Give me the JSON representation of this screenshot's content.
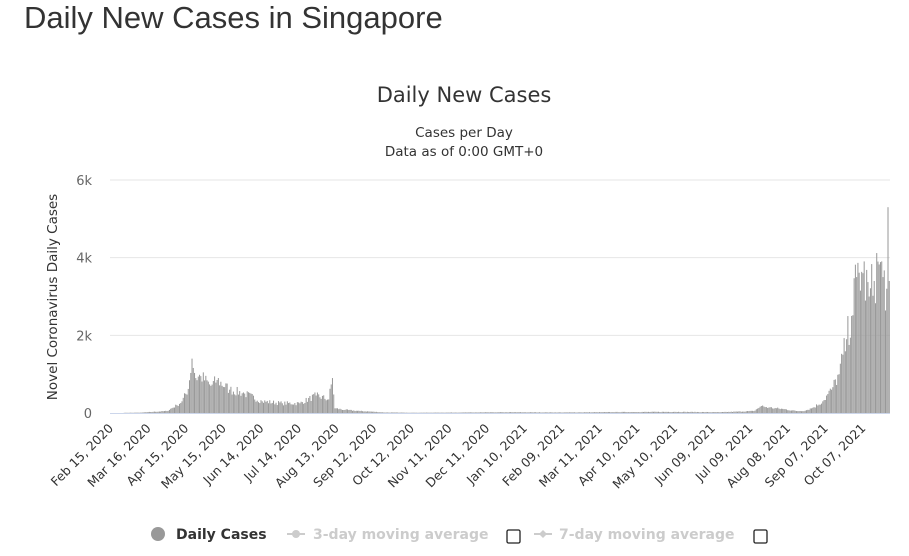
{
  "page": {
    "title": "Daily New Cases in Singapore"
  },
  "colors": {
    "bar": "#999999",
    "legend_inactive": "#cccccc",
    "grid": "#e6e6e6",
    "axis": "#ccd6eb",
    "text": "#333333"
  },
  "chart_data": {
    "type": "bar",
    "title": "Daily New Cases",
    "subtitle": "Cases per Day",
    "subtitle2": "Data as of 0:00 GMT+0",
    "ylabel": "Novel Coronavirus Daily Cases",
    "xlabel": "",
    "ylim": [
      0,
      6000
    ],
    "yticks": [
      0,
      2000,
      4000,
      6000
    ],
    "ytick_labels": [
      "0",
      "2k",
      "4k",
      "6k"
    ],
    "x_start": "2020-02-15",
    "x_end": "2021-10-28",
    "xtick_labels": [
      "Feb 15, 2020",
      "Mar 16, 2020",
      "Apr 15, 2020",
      "May 15, 2020",
      "Jun 14, 2020",
      "Jul 14, 2020",
      "Aug 13, 2020",
      "Sep 12, 2020",
      "Oct 12, 2020",
      "Nov 11, 2020",
      "Dec 11, 2020",
      "Jan 10, 2021",
      "Feb 09, 2021",
      "Mar 11, 2021",
      "Apr 10, 2021",
      "May 10, 2021",
      "Jun 09, 2021",
      "Jul 09, 2021",
      "Aug 08, 2021",
      "Sep 07, 2021",
      "Oct 07, 2021"
    ],
    "daily_cases_anchors": [
      [
        "2020-02-15",
        1
      ],
      [
        "2020-03-10",
        10
      ],
      [
        "2020-03-20",
        30
      ],
      [
        "2020-03-31",
        50
      ],
      [
        "2020-04-08",
        200
      ],
      [
        "2020-04-12",
        300
      ],
      [
        "2020-04-17",
        620
      ],
      [
        "2020-04-20",
        1400
      ],
      [
        "2020-04-23",
        900
      ],
      [
        "2020-04-27",
        950
      ],
      [
        "2020-05-05",
        700
      ],
      [
        "2020-05-10",
        850
      ],
      [
        "2020-05-20",
        600
      ],
      [
        "2020-06-01",
        500
      ],
      [
        "2020-06-15",
        300
      ],
      [
        "2020-07-01",
        250
      ],
      [
        "2020-07-15",
        250
      ],
      [
        "2020-07-28",
        450
      ],
      [
        "2020-08-07",
        350
      ],
      [
        "2020-08-10",
        900
      ],
      [
        "2020-08-12",
        120
      ],
      [
        "2020-08-20",
        80
      ],
      [
        "2020-09-01",
        50
      ],
      [
        "2020-09-08",
        40
      ],
      [
        "2020-09-20",
        15
      ],
      [
        "2020-10-15",
        8
      ],
      [
        "2021-01-01",
        20
      ],
      [
        "2021-02-10",
        15
      ],
      [
        "2021-04-01",
        25
      ],
      [
        "2021-05-10",
        30
      ],
      [
        "2021-06-15",
        20
      ],
      [
        "2021-07-12",
        50
      ],
      [
        "2021-07-18",
        180
      ],
      [
        "2021-07-24",
        140
      ],
      [
        "2021-08-05",
        100
      ],
      [
        "2021-08-15",
        50
      ],
      [
        "2021-08-22",
        60
      ],
      [
        "2021-08-29",
        150
      ],
      [
        "2021-09-05",
        300
      ],
      [
        "2021-09-12",
        600
      ],
      [
        "2021-09-18",
        1000
      ],
      [
        "2021-09-24",
        1900
      ],
      [
        "2021-09-28",
        2500
      ],
      [
        "2021-10-02",
        3500
      ],
      [
        "2021-10-07",
        3600
      ],
      [
        "2021-10-12",
        3000
      ],
      [
        "2021-10-16",
        3400
      ],
      [
        "2021-10-19",
        3900
      ],
      [
        "2021-10-23",
        3500
      ],
      [
        "2021-10-26",
        3200
      ],
      [
        "2021-10-27",
        5300
      ],
      [
        "2021-10-28",
        3400
      ]
    ],
    "legend": [
      {
        "label": "Daily Cases",
        "active": true
      },
      {
        "label": "3-day moving average",
        "active": false
      },
      {
        "label": "7-day moving average",
        "active": false
      }
    ]
  }
}
